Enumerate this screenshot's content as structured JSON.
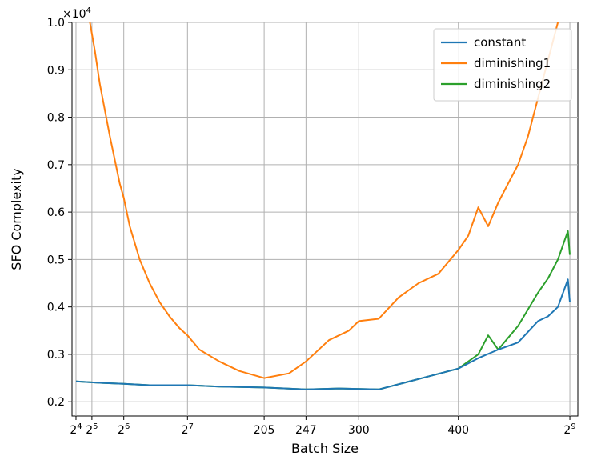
{
  "chart_data": {
    "type": "line",
    "xlabel": "Batch Size",
    "ylabel": "SFO Complexity",
    "y_multiplier_label": "×10",
    "y_multiplier_exp": "4",
    "xlim": [
      12,
      520
    ],
    "ylim": [
      0.17,
      1.0
    ],
    "grid": true,
    "legend_position": "top-right",
    "x_ticks": [
      {
        "value": 16,
        "base": "2",
        "exp": "4"
      },
      {
        "value": 32,
        "base": "2",
        "exp": "5"
      },
      {
        "value": 64,
        "base": "2",
        "exp": "6"
      },
      {
        "value": 128,
        "base": "2",
        "exp": "7"
      },
      {
        "value": 205,
        "base": "205",
        "exp": ""
      },
      {
        "value": 247,
        "base": "247",
        "exp": ""
      },
      {
        "value": 300,
        "base": "300",
        "exp": ""
      },
      {
        "value": 400,
        "base": "400",
        "exp": ""
      },
      {
        "value": 512,
        "base": "2",
        "exp": "9"
      }
    ],
    "y_ticks": [
      "0.2",
      "0.3",
      "0.4",
      "0.5",
      "0.6",
      "0.7",
      "0.8",
      "0.9",
      "1.0"
    ],
    "y_tick_values": [
      0.2,
      0.3,
      0.4,
      0.5,
      0.6,
      0.7,
      0.8,
      0.9,
      1.0
    ],
    "series": [
      {
        "name": "constant",
        "color": "#1f77b4",
        "x": [
          16,
          40,
          64,
          90,
          128,
          160,
          205,
          247,
          280,
          320,
          360,
          400,
          420,
          440,
          460,
          480,
          490,
          500,
          510,
          512
        ],
        "y": [
          0.243,
          0.24,
          0.238,
          0.235,
          0.235,
          0.232,
          0.23,
          0.226,
          0.228,
          0.226,
          0.248,
          0.27,
          0.292,
          0.31,
          0.325,
          0.37,
          0.38,
          0.4,
          0.458,
          0.41
        ]
      },
      {
        "name": "diminishing1",
        "color": "#ff7f0e",
        "x": [
          30,
          35,
          40,
          50,
          60,
          64,
          70,
          80,
          90,
          100,
          110,
          120,
          128,
          140,
          160,
          180,
          205,
          230,
          247,
          270,
          290,
          300,
          320,
          340,
          360,
          380,
          400,
          410,
          420,
          430,
          440,
          450,
          460,
          470,
          480,
          490,
          500
        ],
        "y": [
          1.0,
          0.94,
          0.87,
          0.76,
          0.66,
          0.63,
          0.57,
          0.5,
          0.45,
          0.41,
          0.38,
          0.355,
          0.34,
          0.31,
          0.285,
          0.265,
          0.25,
          0.26,
          0.285,
          0.33,
          0.35,
          0.37,
          0.375,
          0.42,
          0.45,
          0.47,
          0.52,
          0.55,
          0.61,
          0.57,
          0.62,
          0.66,
          0.7,
          0.76,
          0.84,
          0.92,
          1.0
        ]
      },
      {
        "name": "diminishing2",
        "color": "#2ca02c",
        "x": [
          16,
          40,
          64,
          90,
          128,
          160,
          205,
          247,
          280,
          320,
          360,
          400,
          420,
          430,
          440,
          460,
          480,
          490,
          500,
          510,
          512
        ],
        "y": [
          0.243,
          0.24,
          0.238,
          0.235,
          0.235,
          0.232,
          0.23,
          0.226,
          0.228,
          0.226,
          0.248,
          0.27,
          0.3,
          0.34,
          0.31,
          0.36,
          0.43,
          0.46,
          0.5,
          0.56,
          0.51
        ]
      }
    ]
  }
}
